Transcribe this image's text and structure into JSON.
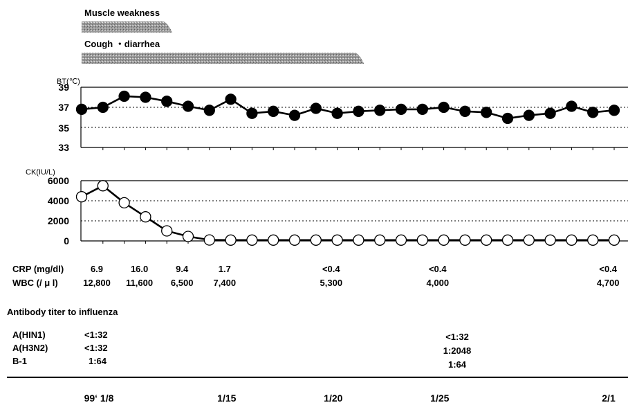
{
  "symptoms": [
    {
      "label": "Muscle weakness",
      "start_day": 1,
      "end_day": 5
    },
    {
      "label": "Cough ・diarrhea",
      "start_day": 1,
      "end_day": 14
    }
  ],
  "chart_data": [
    {
      "type": "line",
      "ylabel": "BT(℃)",
      "ylim": [
        33,
        39
      ],
      "yticks": [
        "39",
        "37",
        "35",
        "33"
      ],
      "grid": "dotted at 35 and 37",
      "marker": "filled-circle",
      "x": [
        "1/8",
        "1/9",
        "1/10",
        "1/11",
        "1/12",
        "1/13",
        "1/14",
        "1/15",
        "1/16",
        "1/17",
        "1/18",
        "1/19",
        "1/20",
        "1/21",
        "1/22",
        "1/23",
        "1/24",
        "1/25",
        "1/26",
        "1/27",
        "1/28",
        "1/29",
        "1/30",
        "1/31",
        "2/1",
        "2/2"
      ],
      "values": [
        36.8,
        37.0,
        38.1,
        38.0,
        37.6,
        37.1,
        36.7,
        37.8,
        36.4,
        36.6,
        36.2,
        36.9,
        36.4,
        36.6,
        36.7,
        36.8,
        36.8,
        37.0,
        36.6,
        36.5,
        35.9,
        36.2,
        36.4,
        37.1,
        36.5,
        36.7
      ]
    },
    {
      "type": "line",
      "ylabel": "CK(IU/L)",
      "ylim": [
        0,
        6000
      ],
      "yticks": [
        "6000",
        "4000",
        "2000",
        "0"
      ],
      "grid": "dotted at 2000 and 4000",
      "marker": "open-circle",
      "x": [
        "1/8",
        "1/9",
        "1/10",
        "1/11",
        "1/12",
        "1/13",
        "1/14",
        "1/15",
        "1/16",
        "1/17",
        "1/18",
        "1/19",
        "1/20",
        "1/21",
        "1/22",
        "1/23",
        "1/24",
        "1/25",
        "1/26",
        "1/27",
        "1/28",
        "1/29",
        "1/30",
        "1/31",
        "2/1",
        "2/2"
      ],
      "values": [
        4400,
        5500,
        3800,
        2400,
        1000,
        450,
        100,
        80,
        80,
        80,
        80,
        80,
        80,
        80,
        80,
        80,
        80,
        80,
        80,
        80,
        80,
        80,
        80,
        80,
        80,
        80
      ]
    }
  ],
  "labs": {
    "crp_label": "CRP (mg/dl)",
    "wbc_label": "WBC (/ μ l)",
    "crp": [
      {
        "day": 1,
        "value": "6.9"
      },
      {
        "day": 3,
        "value": "16.0"
      },
      {
        "day": 5,
        "value": "9.4"
      },
      {
        "day": 7,
        "value": "1.7"
      },
      {
        "day": 12,
        "value": "<0.4"
      },
      {
        "day": 17,
        "value": "<0.4"
      },
      {
        "day": 25,
        "value": "<0.4"
      }
    ],
    "wbc": [
      {
        "day": 1,
        "value": "12,800"
      },
      {
        "day": 3,
        "value": "11,600"
      },
      {
        "day": 5,
        "value": "6,500"
      },
      {
        "day": 7,
        "value": "7,400"
      },
      {
        "day": 12,
        "value": "5,300"
      },
      {
        "day": 17,
        "value": "4,000"
      },
      {
        "day": 25,
        "value": "4,700"
      }
    ]
  },
  "antibody": {
    "title": "Antibody titer to influenza",
    "rows": [
      {
        "name": "A(HIN1)",
        "first": "<1:32",
        "second": "<1:32"
      },
      {
        "name": "A(H3N2)",
        "first": "<1:32",
        "second": "1:2048"
      },
      {
        "name": "B-1",
        "first": "1:64",
        "second": "1:64"
      }
    ]
  },
  "dates": [
    {
      "day": 1,
      "label": "99‘ 1/8"
    },
    {
      "day": 7,
      "label": "1/15"
    },
    {
      "day": 12,
      "label": "1/20"
    },
    {
      "day": 17,
      "label": "1/25"
    },
    {
      "day": 25,
      "label": "2/1"
    }
  ],
  "colors": {
    "line": "#000000",
    "bar": "#8c8c8c",
    "grid": "#000000"
  }
}
